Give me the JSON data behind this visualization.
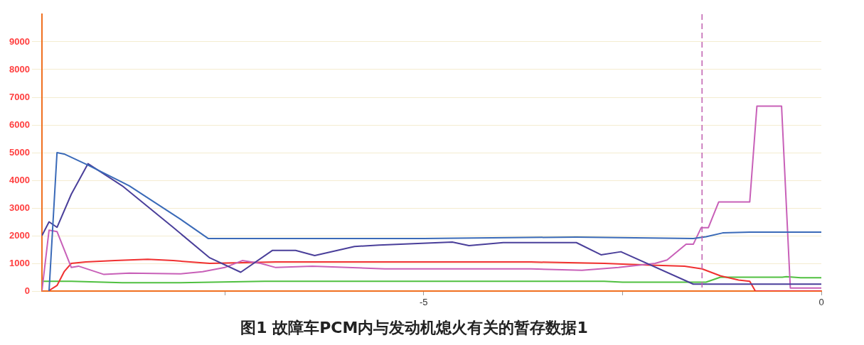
{
  "chart_data": {
    "type": "line",
    "title": "图1 故障车PCM内与发动机熄火有关的暂存数据1",
    "xlim": [
      -9.8,
      0
    ],
    "xticks": [
      {
        "value": -7.5,
        "label": null
      },
      -5,
      {
        "value": -2.5,
        "label": null
      },
      0
    ],
    "ylim": [
      0,
      10000
    ],
    "yticks": [
      0,
      1000,
      2000,
      3000,
      4000,
      5000,
      6000,
      7000,
      8000,
      9000
    ],
    "grid": "y",
    "legend": false,
    "marker": "none",
    "line_style": "solid",
    "ref_lines": [
      {
        "axis": "x",
        "value": -1.5,
        "color": "#c060b0",
        "line_style": "dashed"
      }
    ],
    "series": [
      {
        "color": "#3a6ab8",
        "x": [
          -9.71,
          -9.61,
          -9.52,
          -9.22,
          -8.7,
          -8.06,
          -7.71,
          -7.5,
          -5,
          -3.08,
          -1.61,
          -1.45,
          -1.24,
          -0.9,
          0
        ],
        "values": [
          0,
          5000,
          4950,
          4550,
          3800,
          2600,
          1900,
          1900,
          1900,
          1950,
          1900,
          1960,
          2100,
          2130,
          2130
        ]
      },
      {
        "color": "#4a3f9a",
        "x": [
          -9.8,
          -9.71,
          -9.61,
          -9.43,
          -9.22,
          -8.79,
          -8.15,
          -7.69,
          -7.3,
          -6.9,
          -6.61,
          -6.37,
          -5.87,
          -5.56,
          -4.64,
          -4.43,
          -4,
          -3.08,
          -2.77,
          -2.52,
          -1.61,
          0
        ],
        "values": [
          2000,
          2500,
          2300,
          3500,
          4600,
          3800,
          2300,
          1200,
          680,
          1470,
          1470,
          1280,
          1610,
          1660,
          1770,
          1640,
          1750,
          1750,
          1310,
          1420,
          250,
          250
        ]
      },
      {
        "color": "#c860b8",
        "x": [
          -9.8,
          -9.71,
          -9.61,
          -9.43,
          -9.34,
          -9.02,
          -8.7,
          -8.06,
          -7.78,
          -7.5,
          -7.28,
          -7.05,
          -6.86,
          -6.4,
          -5.49,
          -3.65,
          -3.01,
          -2.55,
          -2.09,
          -1.94,
          -1.7,
          -1.61,
          -1.51,
          -1.42,
          -1.29,
          -0.9,
          -0.81,
          -0.5,
          -0.39,
          0
        ],
        "values": [
          0,
          2200,
          2150,
          850,
          900,
          600,
          650,
          620,
          700,
          850,
          1100,
          1000,
          850,
          900,
          800,
          800,
          750,
          850,
          1000,
          1120,
          1690,
          1690,
          2290,
          2290,
          3220,
          3220,
          6680,
          6680,
          110,
          110
        ]
      },
      {
        "color": "#f03030",
        "x": [
          -9.72,
          -9.61,
          -9.52,
          -9.43,
          -9.25,
          -8.88,
          -8.47,
          -8.15,
          -7.69,
          -6.86,
          -3.65,
          -2.73,
          -2.28,
          -1.72,
          -1.5,
          -1.27,
          -1.04,
          -0.9,
          -0.83,
          0
        ],
        "values": [
          0,
          200,
          700,
          1000,
          1050,
          1100,
          1150,
          1100,
          1000,
          1050,
          1050,
          1000,
          950,
          900,
          800,
          550,
          400,
          350,
          0,
          0
        ]
      },
      {
        "color": "#50c040",
        "x": [
          -9.8,
          -9.43,
          -8.79,
          -8.06,
          -7,
          -4.57,
          -2.73,
          -2.5,
          -1.45,
          -1.27,
          -0.49,
          -0.44,
          -0.26,
          0
        ],
        "values": [
          350,
          350,
          300,
          300,
          350,
          350,
          350,
          320,
          320,
          500,
          500,
          520,
          480,
          480
        ]
      }
    ]
  }
}
